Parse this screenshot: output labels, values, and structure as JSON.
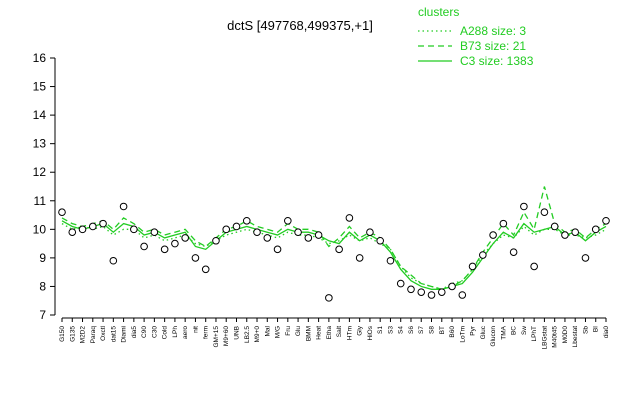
{
  "chart_data": {
    "type": "line",
    "title": "dctS [497768,499375,+1]",
    "legend_title": "clusters",
    "categories": [
      "G150",
      "G135",
      "M2D2",
      "Paraq",
      "Oxctl",
      "dat15",
      "Diami",
      "dia5",
      "C90",
      "C30",
      "Cold",
      "LPh",
      "aero",
      "nit",
      "ferm",
      "GM+15",
      "M9+60",
      "UNB",
      "LB2.5",
      "M9+0",
      "Mal",
      "M/G",
      "Fru",
      "Glu",
      "BMM",
      "Heat",
      "Etha",
      "Salt",
      "HTm",
      "Gly",
      "HiOs",
      "S1",
      "S3",
      "S4",
      "S6",
      "S7",
      "S8",
      "BT",
      "B60",
      "LoTm",
      "Pyr",
      "Gluc",
      "Glucon",
      "TMA",
      "BC",
      "Sw",
      "LPhT",
      "LBGstat",
      "M40t45",
      "M0D0",
      "Lbestat",
      "Sb",
      "BI",
      "dia0"
    ],
    "points": [
      10.6,
      9.9,
      10.0,
      10.1,
      10.2,
      8.9,
      10.8,
      10.0,
      9.4,
      9.9,
      9.3,
      9.5,
      9.7,
      9.0,
      8.6,
      9.6,
      10.0,
      10.1,
      10.3,
      9.9,
      9.7,
      9.3,
      10.3,
      9.9,
      9.7,
      9.8,
      7.6,
      9.3,
      10.4,
      9.0,
      9.9,
      9.6,
      8.9,
      8.1,
      7.9,
      7.8,
      7.7,
      7.8,
      8.0,
      7.7,
      8.7,
      9.1,
      9.8,
      10.2,
      9.2,
      10.8,
      8.7,
      10.6,
      10.1,
      9.8,
      9.9,
      9.0,
      10.0,
      10.3
    ],
    "series": [
      {
        "name": "A288 size: 3",
        "style": "dotted",
        "color": "#22cc22",
        "values": [
          10.2,
          10.0,
          10.1,
          10.0,
          10.1,
          9.8,
          10.0,
          10.0,
          9.7,
          9.8,
          9.6,
          9.7,
          9.8,
          9.5,
          9.4,
          9.6,
          9.8,
          9.9,
          10.0,
          9.9,
          9.8,
          9.7,
          9.9,
          9.8,
          9.8,
          9.7,
          9.5,
          9.6,
          9.8,
          9.6,
          9.7,
          9.5,
          9.3,
          8.7,
          8.3,
          8.1,
          8.0,
          7.9,
          8.1,
          8.2,
          8.6,
          9.1,
          9.5,
          9.8,
          9.7,
          10.1,
          9.8,
          10.0,
          10.0,
          9.8,
          9.8,
          9.7,
          9.8,
          10.0
        ]
      },
      {
        "name": "B73 size: 21",
        "style": "dashed",
        "color": "#22cc22",
        "values": [
          10.4,
          10.2,
          10.1,
          10.2,
          10.3,
          10.0,
          10.4,
          10.2,
          9.9,
          10.0,
          9.8,
          9.9,
          10.0,
          9.6,
          9.4,
          9.7,
          10.0,
          10.1,
          10.3,
          10.1,
          10.0,
          9.9,
          10.2,
          10.0,
          10.0,
          9.9,
          9.4,
          9.7,
          10.1,
          9.7,
          9.9,
          9.7,
          9.3,
          8.7,
          8.4,
          8.1,
          8.0,
          7.9,
          8.0,
          8.2,
          8.6,
          9.2,
          9.7,
          10.2,
          9.8,
          10.6,
          10.0,
          11.5,
          10.2,
          9.9,
          10.0,
          9.7,
          10.0,
          10.2
        ]
      },
      {
        "name": "C3 size: 1383",
        "style": "solid",
        "color": "#22cc22",
        "values": [
          10.3,
          10.1,
          10.0,
          10.1,
          10.2,
          9.9,
          10.2,
          10.1,
          9.8,
          9.9,
          9.7,
          9.8,
          9.9,
          9.4,
          9.3,
          9.6,
          9.9,
          10.0,
          10.1,
          10.0,
          9.9,
          9.8,
          10.0,
          9.9,
          9.9,
          9.8,
          9.6,
          9.5,
          9.9,
          9.6,
          9.8,
          9.6,
          9.2,
          8.6,
          8.2,
          8.0,
          7.9,
          7.9,
          8.0,
          8.1,
          8.5,
          9.0,
          9.5,
          9.9,
          9.7,
          10.2,
          9.9,
          10.0,
          10.1,
          9.8,
          9.9,
          9.6,
          9.9,
          10.1
        ]
      }
    ],
    "ylim": [
      7,
      16
    ],
    "yticks": [
      7,
      8,
      9,
      10,
      11,
      12,
      13,
      14,
      15,
      16
    ]
  }
}
